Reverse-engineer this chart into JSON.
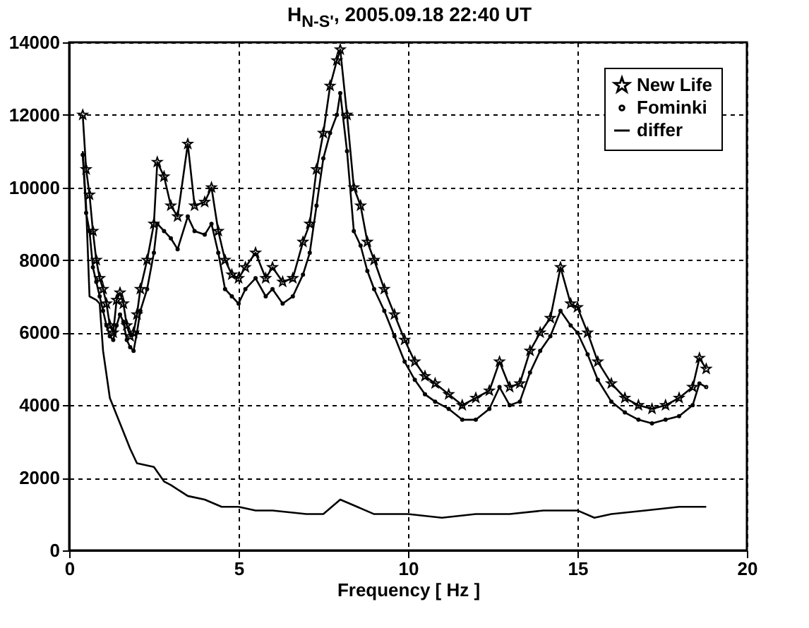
{
  "chart_data": {
    "type": "line",
    "title": "H$_{N-S'}$, 2005.09.18 22:40 UT",
    "xlabel": "Frequency [ Hz ]",
    "xlim": [
      0,
      20
    ],
    "xticks": [
      0,
      5,
      10,
      15,
      20
    ],
    "ylim": [
      0,
      14000
    ],
    "yticks": [
      0,
      2000,
      4000,
      6000,
      8000,
      10000,
      12000,
      14000
    ],
    "grid": true,
    "legend": "top right",
    "line_style": "solid",
    "series": [
      {
        "name": "New Life",
        "color": "#000000",
        "marker": "star",
        "x": [
          0.4,
          0.5,
          0.6,
          0.7,
          0.8,
          0.9,
          1.0,
          1.1,
          1.2,
          1.3,
          1.4,
          1.5,
          1.6,
          1.7,
          1.8,
          1.9,
          2.0,
          2.1,
          2.3,
          2.5,
          2.6,
          2.8,
          3.0,
          3.2,
          3.5,
          3.7,
          4.0,
          4.2,
          4.4,
          4.6,
          4.8,
          5.0,
          5.2,
          5.5,
          5.8,
          6.0,
          6.3,
          6.6,
          6.9,
          7.1,
          7.3,
          7.5,
          7.7,
          7.9,
          8.0,
          8.2,
          8.4,
          8.6,
          8.8,
          9.0,
          9.3,
          9.6,
          9.9,
          10.2,
          10.5,
          10.8,
          11.2,
          11.6,
          12.0,
          12.4,
          12.7,
          13.0,
          13.3,
          13.6,
          13.9,
          14.2,
          14.5,
          14.8,
          15.0,
          15.3,
          15.6,
          16.0,
          16.4,
          16.8,
          17.2,
          17.6,
          18.0,
          18.4,
          18.6,
          18.8
        ],
        "values": [
          12000,
          10500,
          9800,
          8800,
          8000,
          7500,
          7200,
          6800,
          6200,
          6000,
          6900,
          7100,
          6800,
          6200,
          5900,
          6000,
          6500,
          7200,
          8000,
          9000,
          10700,
          10300,
          9500,
          9200,
          11200,
          9500,
          9600,
          10000,
          8800,
          8000,
          7600,
          7500,
          7800,
          8200,
          7500,
          7800,
          7400,
          7500,
          8500,
          9000,
          10500,
          11500,
          12800,
          13500,
          13800,
          12000,
          10000,
          9500,
          8500,
          8000,
          7200,
          6500,
          5800,
          5200,
          4800,
          4600,
          4300,
          4000,
          4200,
          4400,
          5200,
          4500,
          4600,
          5500,
          6000,
          6400,
          7800,
          6800,
          6700,
          6000,
          5200,
          4600,
          4200,
          4000,
          3900,
          4000,
          4200,
          4500,
          5300,
          5000
        ]
      },
      {
        "name": "Fominki",
        "color": "#000000",
        "marker": "circle",
        "x": [
          0.4,
          0.5,
          0.6,
          0.7,
          0.8,
          0.9,
          1.0,
          1.1,
          1.2,
          1.3,
          1.4,
          1.5,
          1.6,
          1.7,
          1.8,
          1.9,
          2.0,
          2.1,
          2.3,
          2.5,
          2.6,
          2.8,
          3.0,
          3.2,
          3.5,
          3.7,
          4.0,
          4.2,
          4.4,
          4.6,
          4.8,
          5.0,
          5.2,
          5.5,
          5.8,
          6.0,
          6.3,
          6.6,
          6.9,
          7.1,
          7.3,
          7.5,
          7.7,
          7.9,
          8.0,
          8.2,
          8.4,
          8.6,
          8.8,
          9.0,
          9.3,
          9.6,
          9.9,
          10.2,
          10.5,
          10.8,
          11.2,
          11.6,
          12.0,
          12.4,
          12.7,
          13.0,
          13.3,
          13.6,
          13.9,
          14.2,
          14.5,
          14.8,
          15.0,
          15.3,
          15.6,
          16.0,
          16.4,
          16.8,
          17.2,
          17.6,
          18.0,
          18.4,
          18.6,
          18.8
        ],
        "values": [
          10900,
          9300,
          8800,
          7800,
          7400,
          7000,
          6600,
          6200,
          5900,
          5800,
          6200,
          6500,
          6300,
          5800,
          5600,
          5500,
          6000,
          6600,
          7200,
          8200,
          9000,
          8800,
          8600,
          8300,
          9200,
          8800,
          8700,
          9000,
          8200,
          7200,
          7000,
          6800,
          7200,
          7500,
          7000,
          7200,
          6800,
          7000,
          7600,
          8200,
          9500,
          10800,
          11500,
          12000,
          12600,
          11000,
          8800,
          8400,
          7700,
          7200,
          6600,
          5900,
          5200,
          4700,
          4300,
          4100,
          3900,
          3600,
          3600,
          3900,
          4500,
          4000,
          4100,
          4900,
          5500,
          5900,
          6600,
          6200,
          6000,
          5400,
          4700,
          4100,
          3800,
          3600,
          3500,
          3600,
          3700,
          4000,
          4600,
          4500
        ]
      },
      {
        "name": "differ",
        "color": "#000000",
        "marker": "none",
        "x": [
          0.4,
          0.5,
          0.6,
          0.8,
          0.9,
          1.0,
          1.2,
          1.5,
          1.8,
          2.0,
          2.5,
          2.8,
          3.0,
          3.5,
          4.0,
          4.5,
          5.0,
          5.5,
          6.0,
          7.0,
          7.5,
          8.0,
          8.5,
          9.0,
          10.0,
          11.0,
          12.0,
          13.0,
          14.0,
          15.0,
          15.5,
          16.0,
          17.0,
          18.0,
          18.8
        ],
        "values": [
          11000,
          9500,
          7000,
          6900,
          6800,
          5500,
          4200,
          3500,
          2800,
          2400,
          2300,
          1900,
          1800,
          1500,
          1400,
          1200,
          1200,
          1100,
          1100,
          1000,
          1000,
          1400,
          1200,
          1000,
          1000,
          900,
          1000,
          1000,
          1100,
          1100,
          900,
          1000,
          1100,
          1200,
          1200
        ]
      }
    ]
  }
}
